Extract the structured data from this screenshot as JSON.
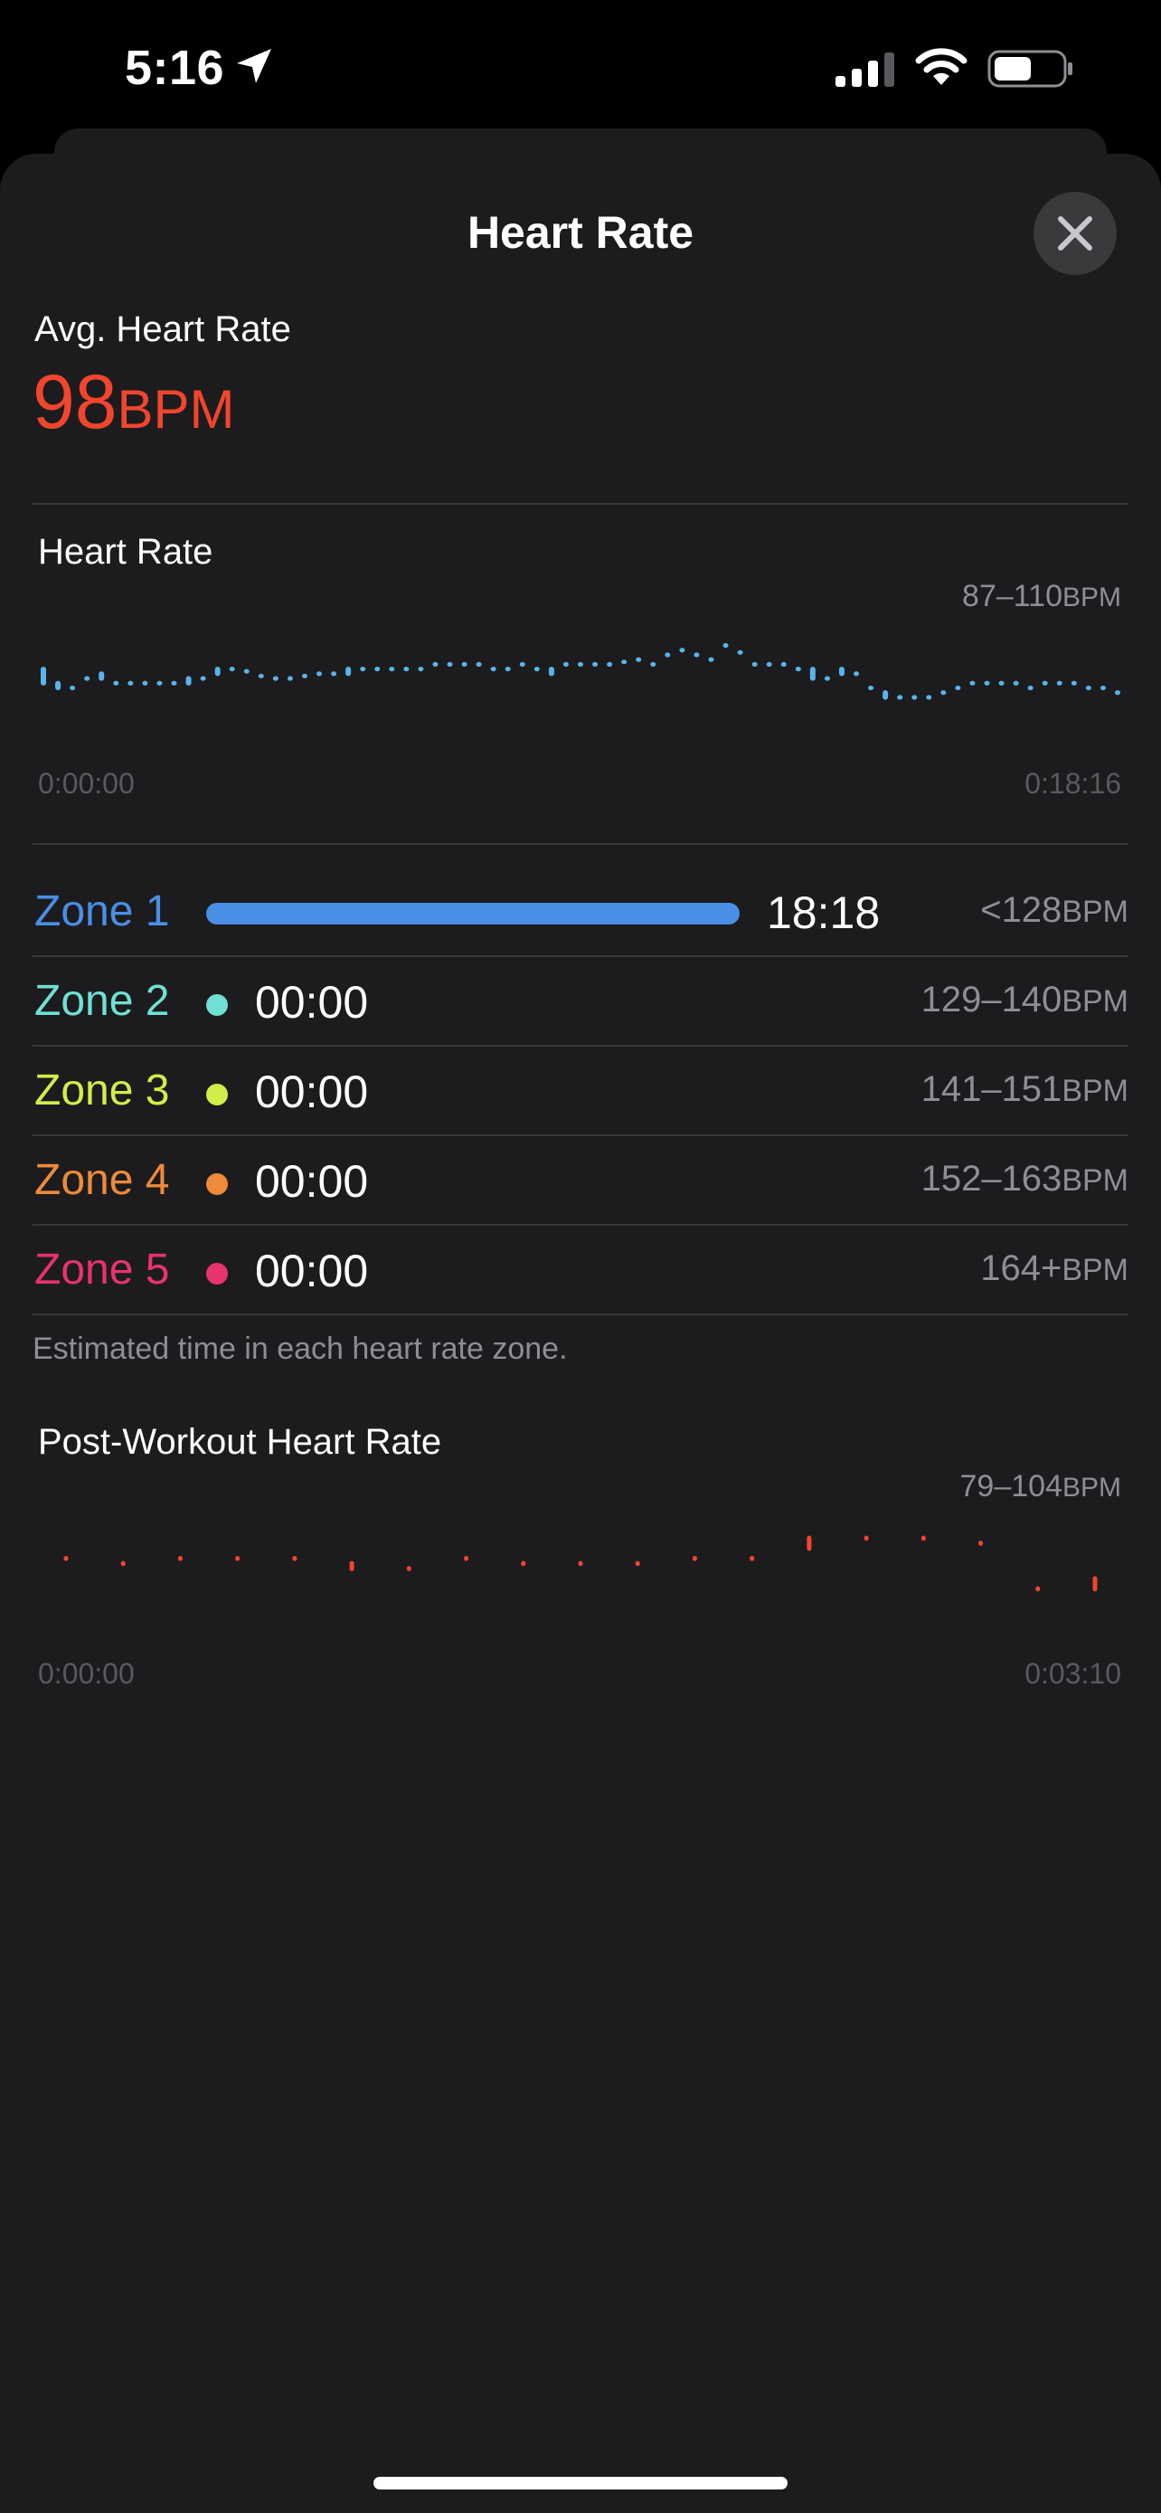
{
  "status_bar": {
    "time": "5:16"
  },
  "sheet": {
    "title": "Heart Rate",
    "avg": {
      "label": "Avg. Heart Rate",
      "value": "98",
      "unit": "BPM"
    }
  },
  "hr_chart": {
    "title": "Heart Rate",
    "range": "87–110",
    "range_unit": "BPM",
    "start_label": "0:00:00",
    "end_label": "0:18:16",
    "color": "#5ab4e8"
  },
  "zones": [
    {
      "name": "Zone 1",
      "time": "18:18",
      "range": "<128",
      "unit": "BPM",
      "color": "#4a8fe7"
    },
    {
      "name": "Zone 2",
      "time": "00:00",
      "range": "129–140",
      "unit": "BPM",
      "color": "#6fe0d4"
    },
    {
      "name": "Zone 3",
      "time": "00:00",
      "range": "141–151",
      "unit": "BPM",
      "color": "#cfee4a"
    },
    {
      "name": "Zone 4",
      "time": "00:00",
      "range": "152–163",
      "unit": "BPM",
      "color": "#ef8a3a"
    },
    {
      "name": "Zone 5",
      "time": "00:00",
      "range": "164+",
      "unit": "BPM",
      "color": "#e8336d"
    }
  ],
  "zones_note": "Estimated time in each heart rate zone.",
  "post_chart": {
    "title": "Post-Workout Heart Rate",
    "range": "79–104",
    "range_unit": "BPM",
    "start_label": "0:00:00",
    "end_label": "0:03:10",
    "color": "#f2452e"
  },
  "chart_data": [
    {
      "type": "scatter",
      "title": "Heart Rate",
      "xlabel": "",
      "ylabel": "BPM",
      "ylim": [
        87,
        110
      ],
      "x_range": [
        "0:00:00",
        "0:18:16"
      ],
      "values_lo": [
        97,
        96,
        96,
        98,
        98,
        97,
        97,
        97,
        97,
        97,
        97,
        98,
        99,
        100,
        100,
        99,
        98,
        98,
        99,
        99,
        99,
        99,
        100,
        100,
        100,
        100,
        100,
        101,
        101,
        101,
        101,
        100,
        100,
        101,
        100,
        99,
        101,
        101,
        101,
        101,
        102,
        102,
        101,
        103,
        104,
        103,
        102,
        105,
        104,
        101,
        101,
        101,
        100,
        98,
        98,
        99,
        99,
        96,
        94,
        94,
        94,
        94,
        95,
        96,
        97,
        97,
        97,
        97,
        96,
        97,
        97,
        97,
        96,
        96,
        95
      ],
      "values_hi": [
        101,
        98,
        97,
        99,
        100,
        98,
        98,
        98,
        98,
        98,
        99,
        99,
        101,
        101,
        100,
        99,
        99,
        99,
        99,
        100,
        100,
        101,
        101,
        101,
        101,
        101,
        101,
        102,
        102,
        102,
        102,
        101,
        101,
        102,
        101,
        101,
        102,
        102,
        102,
        102,
        102,
        103,
        102,
        104,
        105,
        104,
        103,
        106,
        104,
        102,
        102,
        102,
        101,
        101,
        99,
        101,
        100,
        97,
        96,
        95,
        95,
        95,
        96,
        97,
        98,
        98,
        98,
        98,
        97,
        98,
        98,
        98,
        97,
        97,
        96
      ]
    },
    {
      "type": "scatter",
      "title": "Post-Workout Heart Rate",
      "xlabel": "",
      "ylabel": "BPM",
      "ylim": [
        79,
        104
      ],
      "x_range": [
        "0:00:00",
        "0:03:10"
      ],
      "values_lo": [
        93,
        92,
        93,
        93,
        93,
        91,
        91,
        93,
        92,
        92,
        92,
        93,
        93,
        95,
        97,
        97,
        96,
        87,
        87
      ],
      "values_hi": [
        94,
        93,
        94,
        94,
        94,
        93,
        92,
        94,
        93,
        93,
        93,
        94,
        94,
        98,
        98,
        98,
        97,
        88,
        90
      ]
    }
  ]
}
